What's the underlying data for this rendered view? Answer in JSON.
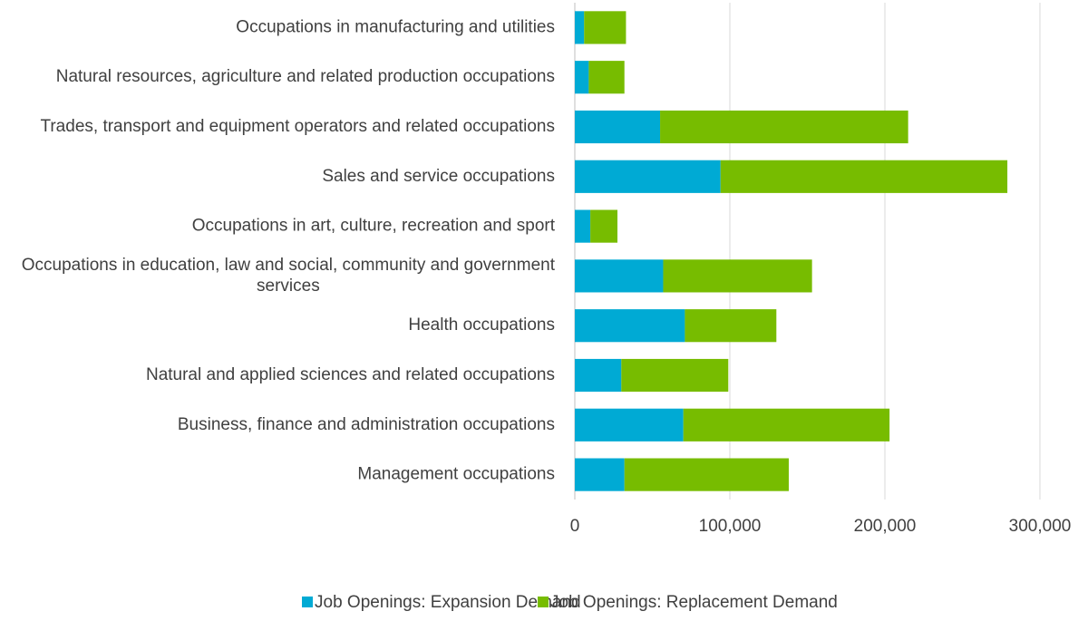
{
  "chart_data": {
    "type": "barh_stacked",
    "categories": [
      "Occupations in manufacturing and utilities",
      "Natural resources, agriculture and related production occupations",
      "Trades, transport and equipment operators and related occupations",
      "Sales and service occupations",
      "Occupations in art, culture, recreation and sport",
      "Occupations in education, law and social, community and government services",
      "Health occupations",
      "Natural and applied sciences and related occupations",
      "Business, finance and administration occupations",
      "Management occupations"
    ],
    "series": [
      {
        "name": "Job Openings: Expansion Demand",
        "color": "#00aad4",
        "values": [
          6000,
          9000,
          55000,
          94000,
          10000,
          57000,
          71000,
          30000,
          70000,
          32000
        ]
      },
      {
        "name": "Job Openings: Replacement Demand",
        "color": "#77bc00",
        "values": [
          27000,
          23000,
          160000,
          185000,
          17500,
          96000,
          59000,
          69000,
          133000,
          106000
        ]
      }
    ],
    "xlim": [
      0,
      320000
    ],
    "xticks": [
      0,
      {
        "value": 100000,
        "label": "100,000"
      },
      {
        "value": 200000,
        "label": "200,000"
      },
      {
        "value": 300000,
        "label": "300,000"
      }
    ],
    "grid": true,
    "legend": "bottom"
  }
}
